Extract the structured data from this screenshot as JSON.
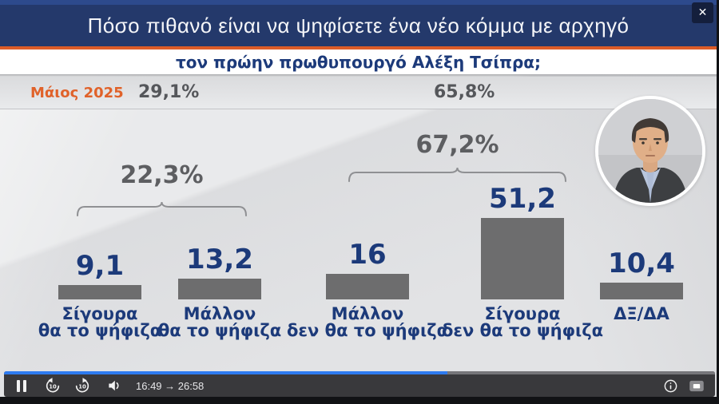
{
  "banner": {
    "title": "Πόσο πιθανό είναι να ψηφίσετε ένα νέο κόμμα με αρχηγό",
    "subtitle": "τον πρώην πρωθυπουργό Αλέξη Τσίπρα;",
    "close_label": "✕"
  },
  "stats_band": {
    "date_label": "Μάιος 2025",
    "left_total": "29,1%",
    "right_total": "65,8%"
  },
  "chart_data": {
    "type": "bar",
    "title": "Πόσο πιθανό είναι να ψηφίσετε ένα νέο κόμμα με αρχηγό τον πρώην πρωθυπουργό Αλέξη Τσίπρα;",
    "categories": [
      "Σίγουρα θα το ψήφιζα",
      "Μάλλον θα το ψήφιζα",
      "Μάλλον δεν θα το ψήφιζα",
      "Σίγουρα δεν θα το ψήφιζα",
      "ΔΞ/ΔΑ"
    ],
    "values": [
      9.1,
      13.2,
      16,
      51.2,
      10.4
    ],
    "value_labels": [
      "9,1",
      "13,2",
      "16",
      "51,2",
      "10,4"
    ],
    "bar_color": "#6d6d6e",
    "value_label_color": "#1c3a7a",
    "group_annotations": [
      {
        "label": "22,3%",
        "covers": [
          "Σίγουρα θα το ψήφιζα",
          "Μάλλον θα το ψήφιζα"
        ]
      },
      {
        "label": "67,2%",
        "covers": [
          "Μάλλον δεν θα το ψήφιζα",
          "Σίγουρα δεν θα το ψήφιζα"
        ]
      }
    ],
    "header_annotations": [
      {
        "label": "Μάιος 2025",
        "color": "#e0622a"
      },
      {
        "value": "29,1%",
        "position": "above-left-group"
      },
      {
        "value": "65,8%",
        "position": "above-right-group"
      }
    ],
    "ylim": [
      0,
      55
    ],
    "grid": false,
    "legend": false
  },
  "bars": [
    {
      "value_display": "9,1",
      "label_line1": "Σίγουρα",
      "label_line2": "θα το ψήφιζα"
    },
    {
      "value_display": "13,2",
      "label_line1": "Μάλλον",
      "label_line2": "θα το ψήφιζα"
    },
    {
      "value_display": "16",
      "label_line1": "Μάλλον",
      "label_line2": "δεν θα το ψήφιζα"
    },
    {
      "value_display": "51,2",
      "label_line1": "Σίγουρα",
      "label_line2": "δεν θα το ψήφιζα"
    },
    {
      "value_display": "10,4",
      "label_line1": "ΔΞ/ΔΑ",
      "label_line2": ""
    }
  ],
  "groups": [
    {
      "label": "22,3%"
    },
    {
      "label": "67,2%"
    }
  ],
  "player": {
    "time_text": "16:49 → 26:58",
    "progress_pct": 62.4,
    "rewind_seconds": "10",
    "forward_seconds": "10"
  },
  "colors": {
    "banner_blue": "#24396b",
    "accent_orange": "#dd5c28",
    "navy_text": "#1c3a7a",
    "gray_text": "#55575b",
    "bar_gray": "#6d6d6e",
    "progress_blue": "#2e7bf0",
    "player_bar": "#39393c"
  }
}
